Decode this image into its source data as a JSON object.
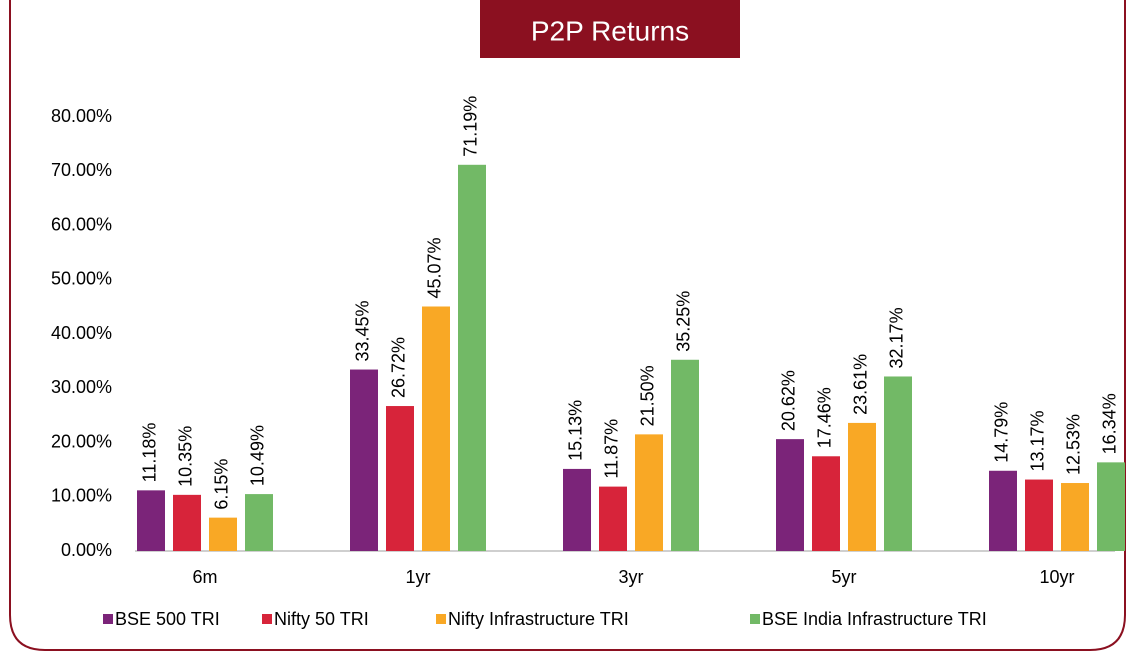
{
  "chart_data": {
    "type": "bar",
    "title": "P2P Returns",
    "categories": [
      "6m",
      "1yr",
      "3yr",
      "5yr",
      "10yr"
    ],
    "series": [
      {
        "name": "BSE 500 TRI",
        "color": "#7b2479",
        "values": [
          11.18,
          33.45,
          15.13,
          20.62,
          14.79
        ],
        "value_labels": [
          "11.18%",
          "33.45%",
          "15.13%",
          "20.62%",
          "14.79%"
        ]
      },
      {
        "name": "Nifty 50 TRI",
        "color": "#d7243a",
        "values": [
          10.35,
          26.72,
          11.87,
          17.46,
          13.17
        ],
        "value_labels": [
          "10.35%",
          "26.72%",
          "11.87%",
          "17.46%",
          "13.17%"
        ]
      },
      {
        "name": "Nifty Infrastructure TRI",
        "color": "#f9a825",
        "values": [
          6.15,
          45.07,
          21.5,
          23.61,
          12.53
        ],
        "value_labels": [
          "6.15%",
          "45.07%",
          "21.50%",
          "23.61%",
          "12.53%"
        ]
      },
      {
        "name": "BSE India Infrastructure TRI",
        "color": "#72b966",
        "values": [
          10.49,
          71.19,
          35.25,
          32.17,
          16.34
        ],
        "value_labels": [
          "10.49%",
          "71.19%",
          "35.25%",
          "32.17%",
          "16.34%"
        ]
      }
    ],
    "ylim": [
      0,
      80
    ],
    "yticks": [
      {
        "value": 0,
        "label": "0.00%"
      },
      {
        "value": 10,
        "label": "10.00%"
      },
      {
        "value": 20,
        "label": "20.00%"
      },
      {
        "value": 30,
        "label": "30.00%"
      },
      {
        "value": 40,
        "label": "40.00%"
      },
      {
        "value": 50,
        "label": "50.00%"
      },
      {
        "value": 60,
        "label": "60.00%"
      },
      {
        "value": 70,
        "label": "70.00%"
      },
      {
        "value": 80,
        "label": "80.00%"
      }
    ],
    "legend": "bottom"
  }
}
